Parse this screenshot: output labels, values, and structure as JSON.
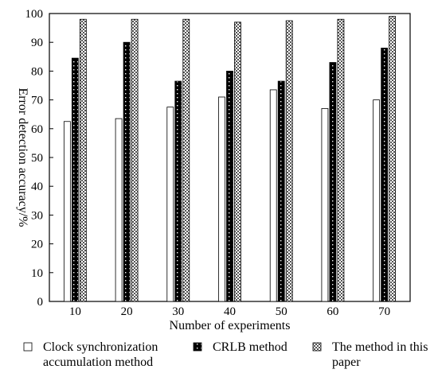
{
  "chart_data": {
    "type": "bar",
    "title": "",
    "xlabel": "Number of experiments",
    "ylabel": "Error detection accuracy/%",
    "categories": [
      "10",
      "20",
      "30",
      "40",
      "50",
      "60",
      "70"
    ],
    "ylim": [
      0,
      100
    ],
    "yticks": [
      0,
      10,
      20,
      30,
      40,
      50,
      60,
      70,
      80,
      90,
      100
    ],
    "grid": false,
    "legend_position": "bottom",
    "series": [
      {
        "name": "Clock synchronization accumulation method",
        "legend_lines": [
          "Clock synchronization",
          "accumulation method"
        ],
        "pattern": "white",
        "values": [
          62.5,
          63.5,
          67.5,
          71,
          73.5,
          67,
          70
        ]
      },
      {
        "name": "CRLB method",
        "legend_lines": [
          "CRLB method"
        ],
        "pattern": "black-dotted",
        "values": [
          84.5,
          90,
          76.5,
          80,
          76.5,
          83,
          88
        ]
      },
      {
        "name": "The method in this paper",
        "legend_lines": [
          "The method in this",
          "paper"
        ],
        "pattern": "grey-checker",
        "values": [
          98,
          98,
          98,
          97,
          97.5,
          98,
          99
        ]
      }
    ]
  }
}
